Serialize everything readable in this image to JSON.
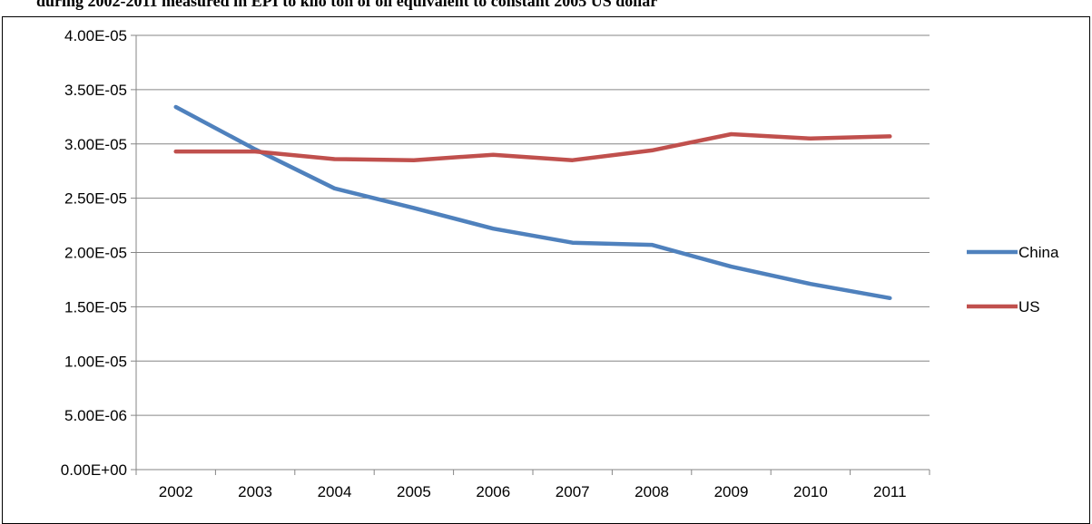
{
  "caption": "during 2002-2011 measured in EPI to kilo ton of oil equivalent to constant 2005 US dollar",
  "chart_data": {
    "type": "line",
    "title": "",
    "xlabel": "",
    "ylabel": "",
    "categories": [
      "2002",
      "2003",
      "2004",
      "2005",
      "2006",
      "2007",
      "2008",
      "2009",
      "2010",
      "2011"
    ],
    "series": [
      {
        "name": "China",
        "color": "#4F81BD",
        "values": [
          3.34e-05,
          2.95e-05,
          2.59e-05,
          2.41e-05,
          2.22e-05,
          2.09e-05,
          2.07e-05,
          1.87e-05,
          1.71e-05,
          1.58e-05
        ]
      },
      {
        "name": "US",
        "color": "#C0504D",
        "values": [
          2.93e-05,
          2.93e-05,
          2.86e-05,
          2.85e-05,
          2.9e-05,
          2.85e-05,
          2.94e-05,
          3.09e-05,
          3.05e-05,
          3.07e-05
        ]
      }
    ],
    "ylim": [
      0,
      4e-05
    ],
    "yticks": [
      "0.00E+00",
      "5.00E-06",
      "1.00E-05",
      "1.50E-05",
      "2.00E-05",
      "2.50E-05",
      "3.00E-05",
      "3.50E-05",
      "4.00E-05"
    ],
    "grid": true,
    "legend_position": "right"
  }
}
